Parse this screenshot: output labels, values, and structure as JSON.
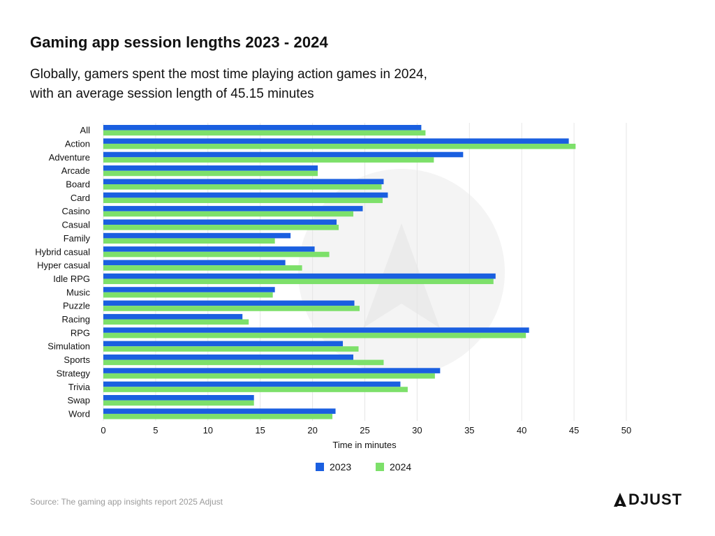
{
  "header": {
    "title": "Gaming app session lengths 2023 - 2024",
    "subtitle_line1": "Globally, gamers spent the most time playing action games in 2024,",
    "subtitle_line2": "with an average session length of 45.15 minutes"
  },
  "footer": {
    "source": "Source: The gaming app insights report 2025 Adjust",
    "logo_text": "DJUST",
    "logo_label": "ADJUST"
  },
  "colors": {
    "series_2023": "#1a5fe0",
    "series_2024": "#7de06a",
    "grid": "#e6e6e6",
    "watermark": "#f3f3f3",
    "text": "#111111"
  },
  "chart_data": {
    "type": "bar",
    "orientation": "horizontal",
    "categories": [
      "All",
      "Action",
      "Adventure",
      "Arcade",
      "Board",
      "Card",
      "Casino",
      "Casual",
      "Family",
      "Hybrid casual",
      "Hyper casual",
      "Idle RPG",
      "Music",
      "Puzzle",
      "Racing",
      "RPG",
      "Simulation",
      "Sports",
      "Strategy",
      "Trivia",
      "Swap",
      "Word"
    ],
    "series": [
      {
        "name": "2023",
        "values": [
          30.4,
          44.5,
          34.4,
          20.5,
          26.8,
          27.2,
          24.8,
          22.3,
          17.9,
          20.2,
          17.4,
          37.5,
          16.4,
          24.0,
          13.3,
          40.7,
          22.9,
          23.9,
          32.2,
          28.4,
          14.4,
          22.2
        ]
      },
      {
        "name": "2024",
        "values": [
          30.8,
          45.15,
          31.6,
          20.5,
          26.6,
          26.7,
          23.9,
          22.5,
          16.4,
          21.6,
          19.0,
          37.3,
          16.2,
          24.5,
          13.9,
          40.4,
          24.4,
          26.8,
          31.7,
          29.1,
          14.4,
          21.9
        ]
      }
    ],
    "xlabel": "Time in minutes",
    "xlim": [
      0,
      50
    ],
    "xticks": [
      0,
      5,
      10,
      15,
      20,
      25,
      30,
      35,
      40,
      45,
      50
    ],
    "legend_position": "bottom",
    "grid": true
  }
}
